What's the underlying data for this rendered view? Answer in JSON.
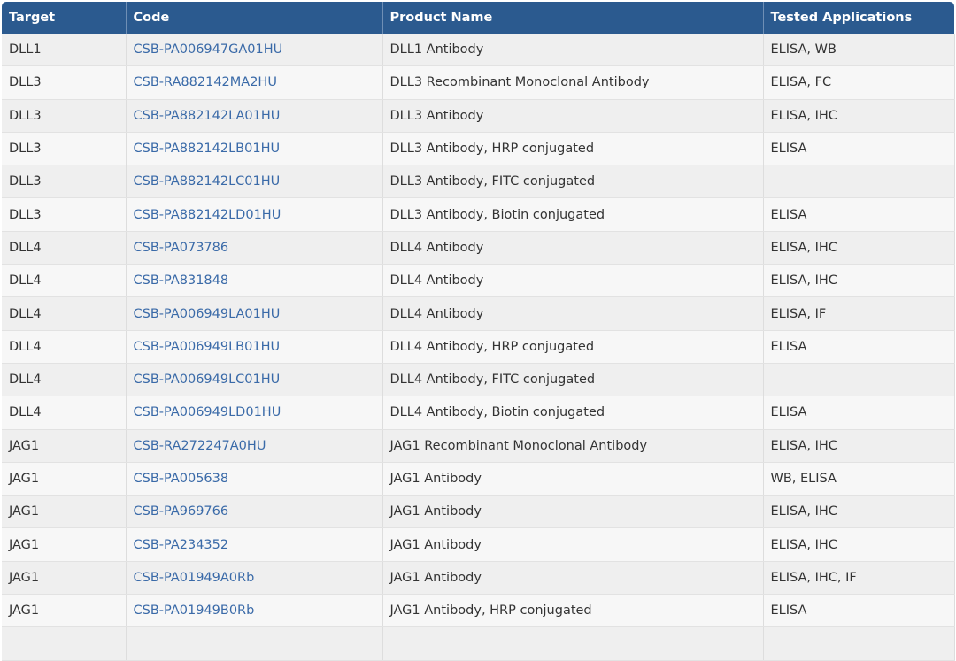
{
  "table": {
    "headers": [
      "Target",
      "Code",
      "Product Name",
      "Tested Applications"
    ],
    "rows": [
      [
        "DLL1",
        "CSB-PA006947GA01HU",
        "DLL1 Antibody",
        "ELISA, WB"
      ],
      [
        "DLL3",
        "CSB-RA882142MA2HU",
        "DLL3 Recombinant Monoclonal Antibody",
        "ELISA, FC"
      ],
      [
        "DLL3",
        "CSB-PA882142LA01HU",
        "DLL3 Antibody",
        "ELISA, IHC"
      ],
      [
        "DLL3",
        "CSB-PA882142LB01HU",
        "DLL3 Antibody, HRP conjugated",
        "ELISA"
      ],
      [
        "DLL3",
        "CSB-PA882142LC01HU",
        "DLL3 Antibody, FITC conjugated",
        ""
      ],
      [
        "DLL3",
        "CSB-PA882142LD01HU",
        "DLL3 Antibody, Biotin conjugated",
        "ELISA"
      ],
      [
        "DLL4",
        "CSB-PA073786",
        "DLL4 Antibody",
        "ELISA, IHC"
      ],
      [
        "DLL4",
        "CSB-PA831848",
        "DLL4 Antibody",
        "ELISA, IHC"
      ],
      [
        "DLL4",
        "CSB-PA006949LA01HU",
        "DLL4 Antibody",
        "ELISA, IF"
      ],
      [
        "DLL4",
        "CSB-PA006949LB01HU",
        "DLL4 Antibody, HRP conjugated",
        "ELISA"
      ],
      [
        "DLL4",
        "CSB-PA006949LC01HU",
        "DLL4 Antibody, FITC conjugated",
        ""
      ],
      [
        "DLL4",
        "CSB-PA006949LD01HU",
        "DLL4 Antibody, Biotin conjugated",
        "ELISA"
      ],
      [
        "JAG1",
        "CSB-RA272247A0HU",
        "JAG1 Recombinant Monoclonal Antibody",
        "ELISA, IHC"
      ],
      [
        "JAG1",
        "CSB-PA005638",
        "JAG1 Antibody",
        "WB, ELISA"
      ],
      [
        "JAG1",
        "CSB-PA969766",
        "JAG1 Antibody",
        "ELISA, IHC"
      ],
      [
        "JAG1",
        "CSB-PA234352",
        "JAG1 Antibody",
        "ELISA, IHC"
      ],
      [
        "JAG1",
        "CSB-PA01949A0Rb",
        "JAG1 Antibody",
        "ELISA, IHC, IF"
      ],
      [
        "JAG1",
        "CSB-PA01949B0Rb",
        "JAG1 Antibody, HRP conjugated",
        "ELISA"
      ],
      [
        "",
        "",
        "",
        ""
      ]
    ]
  },
  "colors": {
    "header_bg": "#2b5a8f",
    "link": "#3a6aa8"
  }
}
